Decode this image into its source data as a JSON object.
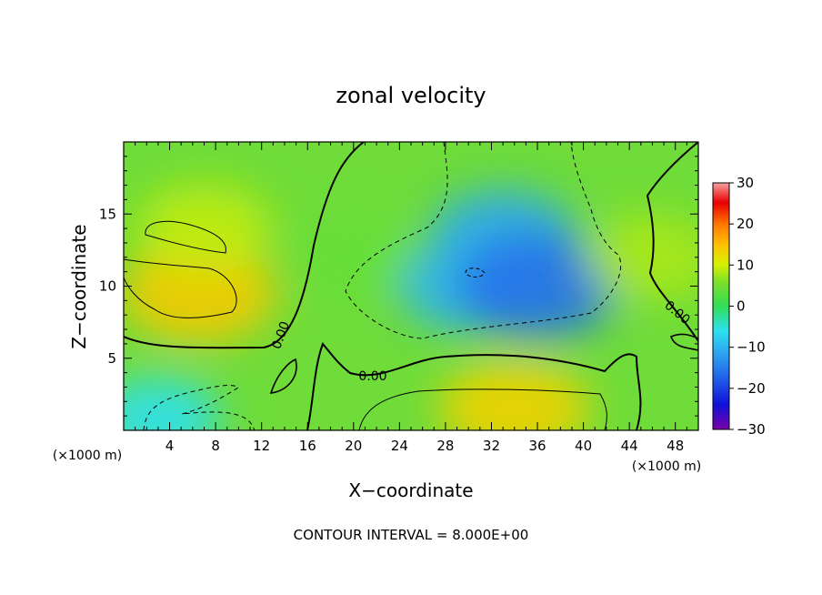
{
  "chart_data": {
    "type": "heatmap",
    "title": "zonal velocity",
    "xlabel": "X−coordinate",
    "ylabel": "Z−coordinate",
    "x_unit": "(×1000 m)",
    "z_unit": "(×1000 m)",
    "xlim": [
      0,
      50
    ],
    "zlim": [
      0,
      20
    ],
    "x_ticks": [
      4,
      8,
      12,
      16,
      20,
      24,
      28,
      32,
      36,
      40,
      44,
      48
    ],
    "z_ticks": [
      5,
      10,
      15
    ],
    "colorbar": {
      "range": [
        -30,
        30
      ],
      "ticks": [
        30,
        20,
        10,
        0,
        -10,
        -20,
        -30
      ],
      "tick_labels": [
        "30",
        "20",
        "10",
        "0",
        "−10",
        "−20",
        "−30"
      ]
    },
    "contour_interval": 8.0,
    "contour_label": "0.00",
    "footnote": "CONTOUR INTERVAL = 8.000E+00",
    "features": [
      {
        "x": 6.5,
        "z": 9.5,
        "value": 14
      },
      {
        "x": 7,
        "z": 14,
        "value": 9
      },
      {
        "x": 3,
        "z": 0.8,
        "value": -6
      },
      {
        "x": 33,
        "z": 13.5,
        "value": -11
      },
      {
        "x": 30,
        "z": 10,
        "value": -10
      },
      {
        "x": 36,
        "z": 10,
        "value": -16
      },
      {
        "x": 34,
        "z": 1.5,
        "value": 13
      },
      {
        "x": 46,
        "z": 12,
        "value": 8
      },
      {
        "x": 20,
        "z": 12,
        "value": 4
      }
    ],
    "colorscale": [
      [
        -30,
        "#7a00a8"
      ],
      [
        -24,
        "#1010d8"
      ],
      [
        -18,
        "#1f5ae8"
      ],
      [
        -12,
        "#2d9ef0"
      ],
      [
        -6,
        "#2ce0f0"
      ],
      [
        0,
        "#33dd55"
      ],
      [
        6,
        "#7ee02a"
      ],
      [
        10,
        "#d8f000"
      ],
      [
        15,
        "#ffc000"
      ],
      [
        20,
        "#ff7a00"
      ],
      [
        26,
        "#e80000"
      ],
      [
        30,
        "#f8a0a0"
      ]
    ]
  }
}
